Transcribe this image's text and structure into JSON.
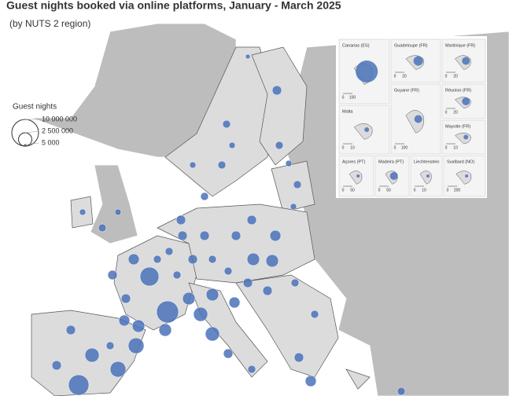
{
  "header": {
    "title": "Guest nights booked via online platforms, January - March 2025",
    "subtitle": "(by NUTS 2 region)"
  },
  "legend": {
    "title": "Guest nights",
    "entries": [
      {
        "value": 10000000,
        "label": "10 000 000"
      },
      {
        "value": 2500000,
        "label": "2 500 000"
      },
      {
        "value": 5000,
        "label": "5 000"
      }
    ]
  },
  "insets": [
    {
      "name": "Canarias (ES)",
      "scale": [
        "0",
        "100"
      ]
    },
    {
      "name": "Guadeloupe (FR)",
      "scale": [
        "0",
        "20"
      ]
    },
    {
      "name": "Martinique (FR)",
      "scale": [
        "0",
        "20"
      ]
    },
    {
      "name": "Malta",
      "scale": [
        "0",
        "10"
      ]
    },
    {
      "name": "Guyane (FR)",
      "scale": [
        "0",
        "100"
      ]
    },
    {
      "name": "Réunion (FR)",
      "scale": [
        "0",
        "20"
      ]
    },
    {
      "name": "Mayotte (FR)",
      "scale": [
        "0",
        "10"
      ]
    },
    {
      "name": "Açores (PT)",
      "scale": [
        "0",
        "50"
      ]
    },
    {
      "name": "Madeira (PT)",
      "scale": [
        "0",
        "50"
      ]
    },
    {
      "name": "Liechtenstein",
      "scale": [
        "0",
        "10"
      ]
    },
    {
      "name": "Svalbard (NO)",
      "scale": [
        "0",
        "200"
      ]
    }
  ]
}
